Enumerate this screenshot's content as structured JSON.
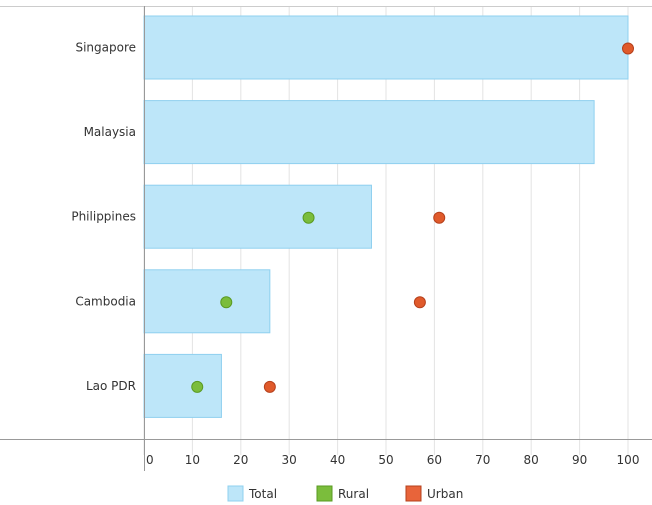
{
  "chart_data": {
    "type": "bar",
    "orientation": "horizontal",
    "categories": [
      "Singapore",
      "Malaysia",
      "Philippines",
      "Cambodia",
      "Lao PDR"
    ],
    "series": [
      {
        "name": "Total",
        "kind": "bar",
        "values": [
          100,
          93,
          47,
          26,
          16
        ],
        "color": "#bde6f9"
      },
      {
        "name": "Rural",
        "kind": "dot",
        "values": [
          null,
          null,
          34,
          17,
          11
        ],
        "color": "#7bbd3c"
      },
      {
        "name": "Urban",
        "kind": "dot",
        "values": [
          100,
          null,
          61,
          57,
          26
        ],
        "color": "#e05a2b"
      }
    ],
    "x_ticks": [
      0,
      10,
      20,
      30,
      40,
      50,
      60,
      70,
      80,
      90,
      100
    ],
    "xlim": [
      0,
      105
    ],
    "grid": true,
    "legend_position": "bottom-center"
  },
  "legend": {
    "items": [
      {
        "label": "Total",
        "color": "#bde6f9",
        "border": "#8fd0ef"
      },
      {
        "label": "Rural",
        "color": "#7bbd3c",
        "border": "#5a9a22"
      },
      {
        "label": "Urban",
        "color": "#e8643a",
        "border": "#b5401c"
      }
    ]
  }
}
